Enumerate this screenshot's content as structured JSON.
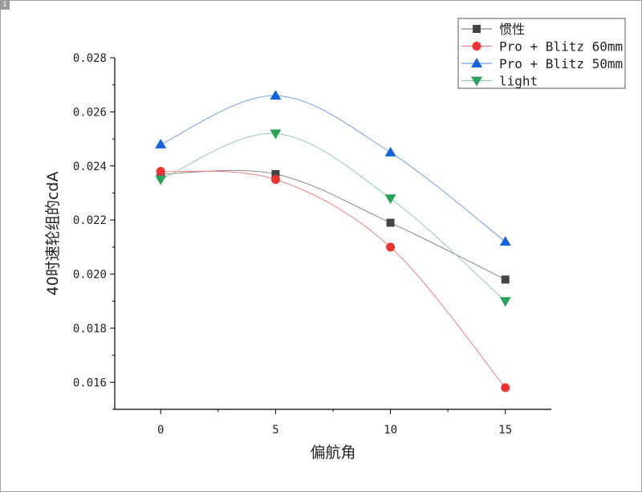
{
  "page_tag": "1",
  "chart_data": {
    "type": "line",
    "title": "",
    "xlabel": "偏航角",
    "ylabel": "40时速轮组的cdA",
    "x": [
      0,
      5,
      10,
      15
    ],
    "xlim": [
      -2,
      17
    ],
    "ylim": [
      0.015,
      0.028
    ],
    "xticks": [
      "0",
      "5",
      "10",
      "15"
    ],
    "yticks": [
      "0.016",
      "0.018",
      "0.020",
      "0.022",
      "0.024",
      "0.026",
      "0.028"
    ],
    "grid": false,
    "legend_position": "top-right",
    "smooth": true,
    "series": [
      {
        "name": "惯性",
        "values": [
          0.0237,
          0.0237,
          0.0219,
          0.0198
        ],
        "color": "#444444",
        "line_color": "#888888",
        "marker": "square"
      },
      {
        "name": "Pro + Blitz 60mm",
        "values": [
          0.0238,
          0.0235,
          0.021,
          0.0158
        ],
        "color": "#ee3333",
        "line_color": "#f08080",
        "marker": "circle"
      },
      {
        "name": "Pro + Blitz 50mm",
        "values": [
          0.0248,
          0.0266,
          0.0245,
          0.0212
        ],
        "color": "#1464dc",
        "line_color": "#6fa0ea",
        "marker": "triangle-up"
      },
      {
        "name": "light",
        "values": [
          0.0235,
          0.0252,
          0.0228,
          0.019
        ],
        "color": "#27a35a",
        "line_color": "#8fd0a8",
        "marker": "triangle-down"
      }
    ]
  }
}
